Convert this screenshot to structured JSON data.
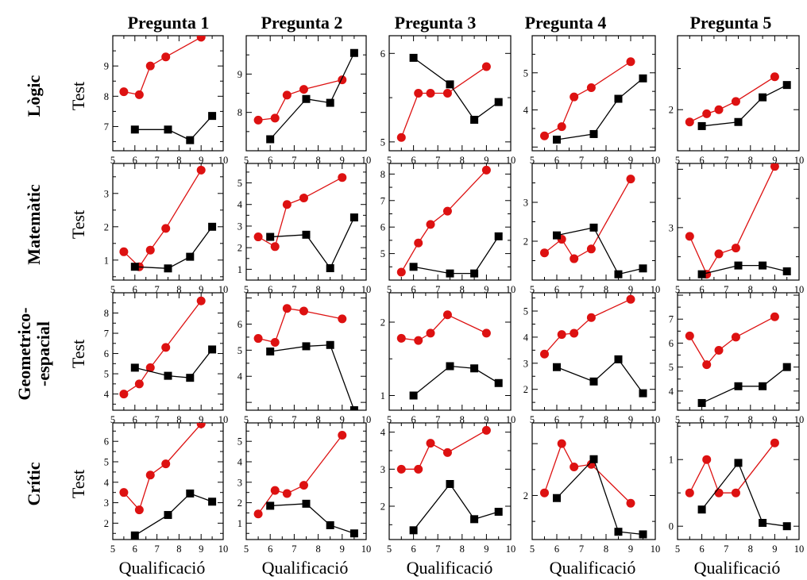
{
  "columns": [
    "Pregunta 1",
    "Pregunta 2",
    "Pregunta 3",
    "Pregunta 4",
    "Pregunta 5"
  ],
  "rows": [
    {
      "lines": [
        "Lògic"
      ]
    },
    {
      "lines": [
        "Matemàtic"
      ]
    },
    {
      "lines": [
        "Geometrico-",
        "-espacial"
      ]
    },
    {
      "lines": [
        "Crític"
      ]
    }
  ],
  "y_axis_label": "Test",
  "x_axis_label": "Qualificació",
  "colors": {
    "red": "#dd1111",
    "black": "#000000"
  },
  "chart_data": [
    {
      "type": "line",
      "row": 0,
      "col": 0,
      "xlim": [
        5,
        10
      ],
      "ylim": [
        6.2,
        10
      ],
      "yticks": [
        7,
        8,
        9
      ],
      "series": [
        {
          "color": "red",
          "marker": "circle",
          "x": [
            5.5,
            6.2,
            6.7,
            7.4,
            9
          ],
          "y": [
            8.15,
            8.05,
            9,
            9.3,
            9.95
          ]
        },
        {
          "color": "black",
          "marker": "square",
          "x": [
            6,
            7.5,
            8.5,
            9.5
          ],
          "y": [
            6.9,
            6.9,
            6.55,
            7.35
          ]
        }
      ]
    },
    {
      "type": "line",
      "row": 0,
      "col": 1,
      "xlim": [
        5,
        10
      ],
      "ylim": [
        7,
        10
      ],
      "yticks": [
        8,
        9
      ],
      "series": [
        {
          "color": "red",
          "marker": "circle",
          "x": [
            5.5,
            6.2,
            6.7,
            7.4,
            9
          ],
          "y": [
            7.8,
            7.85,
            8.45,
            8.6,
            8.85
          ]
        },
        {
          "color": "black",
          "marker": "square",
          "x": [
            6,
            7.5,
            8.5,
            9.5
          ],
          "y": [
            7.3,
            8.35,
            8.25,
            9.55
          ]
        }
      ]
    },
    {
      "type": "line",
      "row": 0,
      "col": 2,
      "xlim": [
        5,
        10
      ],
      "ylim": [
        4.9,
        6.2
      ],
      "yticks": [
        5,
        6
      ],
      "series": [
        {
          "color": "red",
          "marker": "circle",
          "x": [
            5.5,
            6.2,
            6.7,
            7.4,
            9
          ],
          "y": [
            5.05,
            5.55,
            5.55,
            5.55,
            5.85
          ]
        },
        {
          "color": "black",
          "marker": "square",
          "x": [
            6,
            7.5,
            8.5,
            9.5
          ],
          "y": [
            5.95,
            5.65,
            5.25,
            5.45
          ]
        }
      ]
    },
    {
      "type": "line",
      "row": 0,
      "col": 3,
      "xlim": [
        5,
        10
      ],
      "ylim": [
        2.9,
        6
      ],
      "yticks": [
        4,
        5
      ],
      "series": [
        {
          "color": "red",
          "marker": "circle",
          "x": [
            5.5,
            6.2,
            6.7,
            7.4,
            9
          ],
          "y": [
            3.3,
            3.55,
            4.35,
            4.6,
            5.3
          ]
        },
        {
          "color": "black",
          "marker": "square",
          "x": [
            6,
            7.5,
            8.5,
            9.5
          ],
          "y": [
            3.2,
            3.35,
            4.3,
            4.85
          ]
        }
      ]
    },
    {
      "type": "line",
      "row": 0,
      "col": 4,
      "xlim": [
        5,
        10
      ],
      "ylim": [
        1.5,
        2.9
      ],
      "yticks": [
        2
      ],
      "series": [
        {
          "color": "red",
          "marker": "circle",
          "x": [
            5.5,
            6.2,
            6.7,
            7.4,
            9
          ],
          "y": [
            1.85,
            1.95,
            2,
            2.1,
            2.4
          ]
        },
        {
          "color": "black",
          "marker": "square",
          "x": [
            6,
            7.5,
            8.5,
            9.5
          ],
          "y": [
            1.8,
            1.85,
            2.15,
            2.3
          ]
        }
      ]
    },
    {
      "type": "line",
      "row": 1,
      "col": 0,
      "xlim": [
        5,
        10
      ],
      "ylim": [
        0.4,
        3.9
      ],
      "yticks": [
        1,
        2,
        3
      ],
      "series": [
        {
          "color": "red",
          "marker": "circle",
          "x": [
            5.5,
            6.2,
            6.7,
            7.4,
            9
          ],
          "y": [
            1.25,
            0.8,
            1.3,
            1.95,
            3.7
          ]
        },
        {
          "color": "black",
          "marker": "square",
          "x": [
            6,
            7.5,
            8.5,
            9.5
          ],
          "y": [
            0.8,
            0.75,
            1.1,
            2
          ]
        }
      ]
    },
    {
      "type": "line",
      "row": 1,
      "col": 1,
      "xlim": [
        5,
        10
      ],
      "ylim": [
        0.5,
        5.9
      ],
      "yticks": [
        1,
        2,
        3,
        4,
        5
      ],
      "series": [
        {
          "color": "red",
          "marker": "circle",
          "x": [
            5.5,
            6.2,
            6.7,
            7.4,
            9
          ],
          "y": [
            2.5,
            2.05,
            4,
            4.3,
            5.25
          ]
        },
        {
          "color": "black",
          "marker": "square",
          "x": [
            6,
            7.5,
            8.5,
            9.5
          ],
          "y": [
            2.5,
            2.6,
            1.05,
            3.4
          ]
        }
      ]
    },
    {
      "type": "line",
      "row": 1,
      "col": 2,
      "xlim": [
        5,
        10
      ],
      "ylim": [
        4,
        8.4
      ],
      "yticks": [
        5,
        6,
        7,
        8
      ],
      "series": [
        {
          "color": "red",
          "marker": "circle",
          "x": [
            5.5,
            6.2,
            6.7,
            7.4,
            9
          ],
          "y": [
            4.3,
            5.4,
            6.1,
            6.6,
            8.15
          ]
        },
        {
          "color": "black",
          "marker": "square",
          "x": [
            6,
            7.5,
            8.5,
            9.5
          ],
          "y": [
            4.5,
            4.25,
            4.25,
            5.65
          ]
        }
      ]
    },
    {
      "type": "line",
      "row": 1,
      "col": 3,
      "xlim": [
        5,
        10
      ],
      "ylim": [
        1,
        4
      ],
      "yticks": [
        2,
        3
      ],
      "series": [
        {
          "color": "red",
          "marker": "circle",
          "x": [
            5.5,
            6.2,
            6.7,
            7.4,
            9
          ],
          "y": [
            1.7,
            2.05,
            1.55,
            1.8,
            3.6
          ]
        },
        {
          "color": "black",
          "marker": "square",
          "x": [
            6,
            7.5,
            8.5,
            9.5
          ],
          "y": [
            2.15,
            2.35,
            1.15,
            1.3
          ]
        }
      ]
    },
    {
      "type": "line",
      "row": 1,
      "col": 4,
      "xlim": [
        5,
        10
      ],
      "ylim": [
        2.1,
        4.1
      ],
      "yticks": [
        3
      ],
      "series": [
        {
          "color": "red",
          "marker": "circle",
          "x": [
            5.5,
            6.2,
            6.7,
            7.4,
            9
          ],
          "y": [
            2.85,
            2.2,
            2.55,
            2.65,
            4.05
          ]
        },
        {
          "color": "black",
          "marker": "square",
          "x": [
            6,
            7.5,
            8.5,
            9.5
          ],
          "y": [
            2.2,
            2.35,
            2.35,
            2.25
          ]
        }
      ]
    },
    {
      "type": "line",
      "row": 2,
      "col": 0,
      "xlim": [
        5,
        10
      ],
      "ylim": [
        3.2,
        9
      ],
      "yticks": [
        4,
        5,
        6,
        7,
        8
      ],
      "series": [
        {
          "color": "red",
          "marker": "circle",
          "x": [
            5.5,
            6.2,
            6.7,
            7.4,
            9
          ],
          "y": [
            4,
            4.5,
            5.3,
            6.3,
            8.6
          ]
        },
        {
          "color": "black",
          "marker": "square",
          "x": [
            6,
            7.5,
            8.5,
            9.5
          ],
          "y": [
            5.3,
            4.9,
            4.8,
            6.2
          ]
        }
      ]
    },
    {
      "type": "line",
      "row": 2,
      "col": 1,
      "xlim": [
        5,
        10
      ],
      "ylim": [
        2.7,
        7.2
      ],
      "yticks": [
        4,
        5,
        6
      ],
      "series": [
        {
          "color": "red",
          "marker": "circle",
          "x": [
            5.5,
            6.2,
            6.7,
            7.4,
            9
          ],
          "y": [
            5.45,
            5.3,
            6.6,
            6.5,
            6.2
          ]
        },
        {
          "color": "black",
          "marker": "square",
          "x": [
            6,
            7.5,
            8.5,
            9.5
          ],
          "y": [
            4.95,
            5.15,
            5.2,
            2.7
          ]
        }
      ]
    },
    {
      "type": "line",
      "row": 2,
      "col": 2,
      "xlim": [
        5,
        10
      ],
      "ylim": [
        0.8,
        2.4
      ],
      "yticks": [
        1,
        2
      ],
      "series": [
        {
          "color": "red",
          "marker": "circle",
          "x": [
            5.5,
            6.2,
            6.7,
            7.4,
            9
          ],
          "y": [
            1.78,
            1.75,
            1.85,
            2.1,
            1.85
          ]
        },
        {
          "color": "black",
          "marker": "square",
          "x": [
            6,
            7.5,
            8.5,
            9.5
          ],
          "y": [
            1,
            1.4,
            1.37,
            1.17
          ]
        }
      ]
    },
    {
      "type": "line",
      "row": 2,
      "col": 3,
      "xlim": [
        5,
        10
      ],
      "ylim": [
        1.2,
        5.7
      ],
      "yticks": [
        2,
        3,
        4,
        5
      ],
      "series": [
        {
          "color": "red",
          "marker": "circle",
          "x": [
            5.5,
            6.2,
            6.7,
            7.4,
            9
          ],
          "y": [
            3.35,
            4.1,
            4.15,
            4.75,
            5.45
          ]
        },
        {
          "color": "black",
          "marker": "square",
          "x": [
            6,
            7.5,
            8.5,
            9.5
          ],
          "y": [
            2.85,
            2.3,
            3.15,
            1.85
          ]
        }
      ]
    },
    {
      "type": "line",
      "row": 2,
      "col": 4,
      "xlim": [
        5,
        10
      ],
      "ylim": [
        3.2,
        8.1
      ],
      "yticks": [
        4,
        5,
        6,
        7
      ],
      "series": [
        {
          "color": "red",
          "marker": "circle",
          "x": [
            5.5,
            6.2,
            6.7,
            7.4,
            9
          ],
          "y": [
            6.3,
            5.1,
            5.7,
            6.25,
            7.1
          ]
        },
        {
          "color": "black",
          "marker": "square",
          "x": [
            6,
            7.5,
            8.5,
            9.5
          ],
          "y": [
            3.5,
            4.2,
            4.2,
            5
          ]
        }
      ]
    },
    {
      "type": "line",
      "row": 3,
      "col": 0,
      "xlim": [
        5,
        10
      ],
      "ylim": [
        1.2,
        6.9
      ],
      "yticks": [
        2,
        3,
        4,
        5,
        6
      ],
      "series": [
        {
          "color": "red",
          "marker": "circle",
          "x": [
            5.5,
            6.2,
            6.7,
            7.4,
            9
          ],
          "y": [
            3.5,
            2.65,
            4.35,
            4.9,
            6.85
          ]
        },
        {
          "color": "black",
          "marker": "square",
          "x": [
            6,
            7.5,
            8.5,
            9.5
          ],
          "y": [
            1.4,
            2.4,
            3.45,
            3.05
          ]
        }
      ]
    },
    {
      "type": "line",
      "row": 3,
      "col": 1,
      "xlim": [
        5,
        10
      ],
      "ylim": [
        0.2,
        5.9
      ],
      "yticks": [
        1,
        2,
        3,
        4,
        5
      ],
      "series": [
        {
          "color": "red",
          "marker": "circle",
          "x": [
            5.5,
            6.2,
            6.7,
            7.4,
            9
          ],
          "y": [
            1.45,
            2.6,
            2.45,
            2.85,
            5.3
          ]
        },
        {
          "color": "black",
          "marker": "square",
          "x": [
            6,
            7.5,
            8.5,
            9.5
          ],
          "y": [
            1.85,
            1.95,
            0.9,
            0.5
          ]
        }
      ]
    },
    {
      "type": "line",
      "row": 3,
      "col": 2,
      "xlim": [
        5,
        10
      ],
      "ylim": [
        1.1,
        4.25
      ],
      "yticks": [
        2,
        3,
        4
      ],
      "series": [
        {
          "color": "red",
          "marker": "circle",
          "x": [
            5.5,
            6.2,
            6.7,
            7.4,
            9
          ],
          "y": [
            3,
            3,
            3.7,
            3.45,
            4.05
          ]
        },
        {
          "color": "black",
          "marker": "square",
          "x": [
            6,
            7.5,
            8.5,
            9.5
          ],
          "y": [
            1.35,
            2.6,
            1.65,
            1.85
          ]
        }
      ]
    },
    {
      "type": "line",
      "row": 3,
      "col": 3,
      "xlim": [
        5,
        10
      ],
      "ylim": [
        1.15,
        3.4
      ],
      "yticks": [
        2
      ],
      "series": [
        {
          "color": "red",
          "marker": "circle",
          "x": [
            5.5,
            6.2,
            6.7,
            7.4,
            9
          ],
          "y": [
            2.05,
            3,
            2.55,
            2.6,
            1.85
          ]
        },
        {
          "color": "black",
          "marker": "square",
          "x": [
            6,
            7.5,
            8.5,
            9.5
          ],
          "y": [
            1.95,
            2.7,
            1.3,
            1.25
          ]
        }
      ]
    },
    {
      "type": "line",
      "row": 3,
      "col": 4,
      "xlim": [
        5,
        10
      ],
      "ylim": [
        -0.2,
        1.55
      ],
      "yticks": [
        0,
        1
      ],
      "series": [
        {
          "color": "red",
          "marker": "circle",
          "x": [
            5.5,
            6.2,
            6.7,
            7.4,
            9
          ],
          "y": [
            0.5,
            1,
            0.5,
            0.5,
            1.25
          ]
        },
        {
          "color": "black",
          "marker": "square",
          "x": [
            6,
            7.5,
            8.5,
            9.5
          ],
          "y": [
            0.25,
            0.95,
            0.05,
            0
          ]
        }
      ]
    }
  ]
}
